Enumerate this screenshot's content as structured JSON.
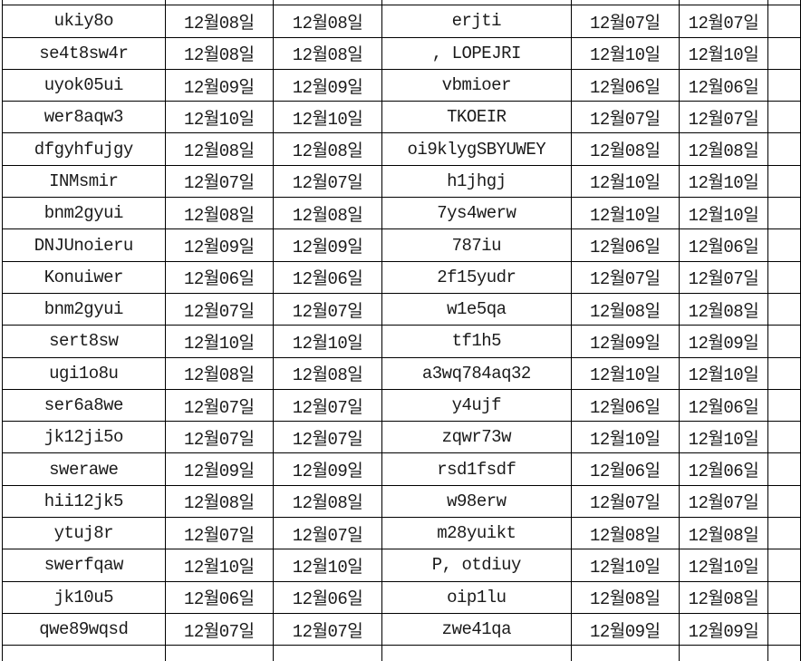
{
  "meta": {
    "description": "Spreadsheet-like data table, no visible headers",
    "grid_line_color": "#000000",
    "text_color": "#1a1a1a",
    "background_color": "#ffffff",
    "date_format": "12월DD일"
  },
  "table": {
    "visible_columns": 6,
    "rows": [
      [
        "ukiy8o",
        "12월08일",
        "12월08일",
        "erjti",
        "12월07일",
        "12월07일"
      ],
      [
        "se4t8sw4r",
        "12월08일",
        "12월08일",
        ", LOPEJRI",
        "12월10일",
        "12월10일"
      ],
      [
        "uyok05ui",
        "12월09일",
        "12월09일",
        "vbmioer",
        "12월06일",
        "12월06일"
      ],
      [
        "wer8aqw3",
        "12월10일",
        "12월10일",
        "TKOEIR",
        "12월07일",
        "12월07일"
      ],
      [
        "dfgyhfujgy",
        "12월08일",
        "12월08일",
        "oi9klygSBYUWEY",
        "12월08일",
        "12월08일"
      ],
      [
        "INMsmir",
        "12월07일",
        "12월07일",
        "h1jhgj",
        "12월10일",
        "12월10일"
      ],
      [
        "bnm2gyui",
        "12월08일",
        "12월08일",
        "7ys4werw",
        "12월10일",
        "12월10일"
      ],
      [
        "DNJUnoieru",
        "12월09일",
        "12월09일",
        "787iu",
        "12월06일",
        "12월06일"
      ],
      [
        "Konuiwer",
        "12월06일",
        "12월06일",
        "2f15yudr",
        "12월07일",
        "12월07일"
      ],
      [
        "bnm2gyui",
        "12월07일",
        "12월07일",
        "w1e5qa",
        "12월08일",
        "12월08일"
      ],
      [
        "sert8sw",
        "12월10일",
        "12월10일",
        "tf1h5",
        "12월09일",
        "12월09일"
      ],
      [
        "ugi1o8u",
        "12월08일",
        "12월08일",
        "a3wq784aq32",
        "12월10일",
        "12월10일"
      ],
      [
        "ser6a8we",
        "12월07일",
        "12월07일",
        "y4ujf",
        "12월06일",
        "12월06일"
      ],
      [
        "jk12ji5o",
        "12월07일",
        "12월07일",
        "zqwr73w",
        "12월10일",
        "12월10일"
      ],
      [
        "swerawe",
        "12월09일",
        "12월09일",
        "rsd1fsdf",
        "12월06일",
        "12월06일"
      ],
      [
        "hii12jk5",
        "12월08일",
        "12월08일",
        "w98erw",
        "12월07일",
        "12월07일"
      ],
      [
        "ytuj8r",
        "12월07일",
        "12월07일",
        "m28yuikt",
        "12월08일",
        "12월08일"
      ],
      [
        "swerfqaw",
        "12월10일",
        "12월10일",
        "P, otdiuy",
        "12월10일",
        "12월10일"
      ],
      [
        "jk10u5",
        "12월06일",
        "12월06일",
        "oip1lu",
        "12월08일",
        "12월08일"
      ],
      [
        "qwe89wqsd",
        "12월07일",
        "12월07일",
        "zwe41qa",
        "12월09일",
        "12월09일"
      ]
    ]
  }
}
